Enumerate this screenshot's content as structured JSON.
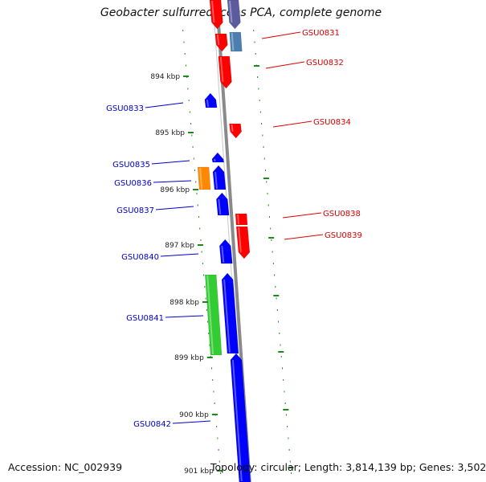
{
  "title": "Geobacter sulfurreducens PCA, complete genome",
  "footer": {
    "accession": "Accession: NC_002939",
    "topology": "Topology: circular; Length: 3,814,139 bp; Genes: 3,502"
  },
  "colors": {
    "backbone": "#8a8a8a",
    "tick": "#1a8a1a",
    "plus_label": "#dd0000",
    "minus_label": "#0000cc",
    "forward_gene": "#ff0000",
    "reverse_gene": "#0000ff",
    "gene_other_a": "#4a7fb0",
    "gene_other_b": "#ff8800",
    "gene_other_c": "#33cc33",
    "gene_other_d": "#5b5b9e"
  },
  "scale_labels": [
    "894 kbp",
    "895 kbp",
    "896 kbp",
    "897 kbp",
    "898 kbp",
    "899 kbp",
    "900 kbp",
    "901 kbp"
  ],
  "genes": [
    {
      "id": "GSU0831",
      "strand": "plus"
    },
    {
      "id": "GSU0832",
      "strand": "plus"
    },
    {
      "id": "GSU0833",
      "strand": "minus"
    },
    {
      "id": "GSU0834",
      "strand": "plus"
    },
    {
      "id": "GSU0835",
      "strand": "minus"
    },
    {
      "id": "GSU0836",
      "strand": "minus"
    },
    {
      "id": "GSU0837",
      "strand": "minus"
    },
    {
      "id": "GSU0838",
      "strand": "plus"
    },
    {
      "id": "GSU0839",
      "strand": "plus"
    },
    {
      "id": "GSU0840",
      "strand": "minus"
    },
    {
      "id": "GSU0841",
      "strand": "minus"
    },
    {
      "id": "GSU0842",
      "strand": "minus"
    }
  ]
}
